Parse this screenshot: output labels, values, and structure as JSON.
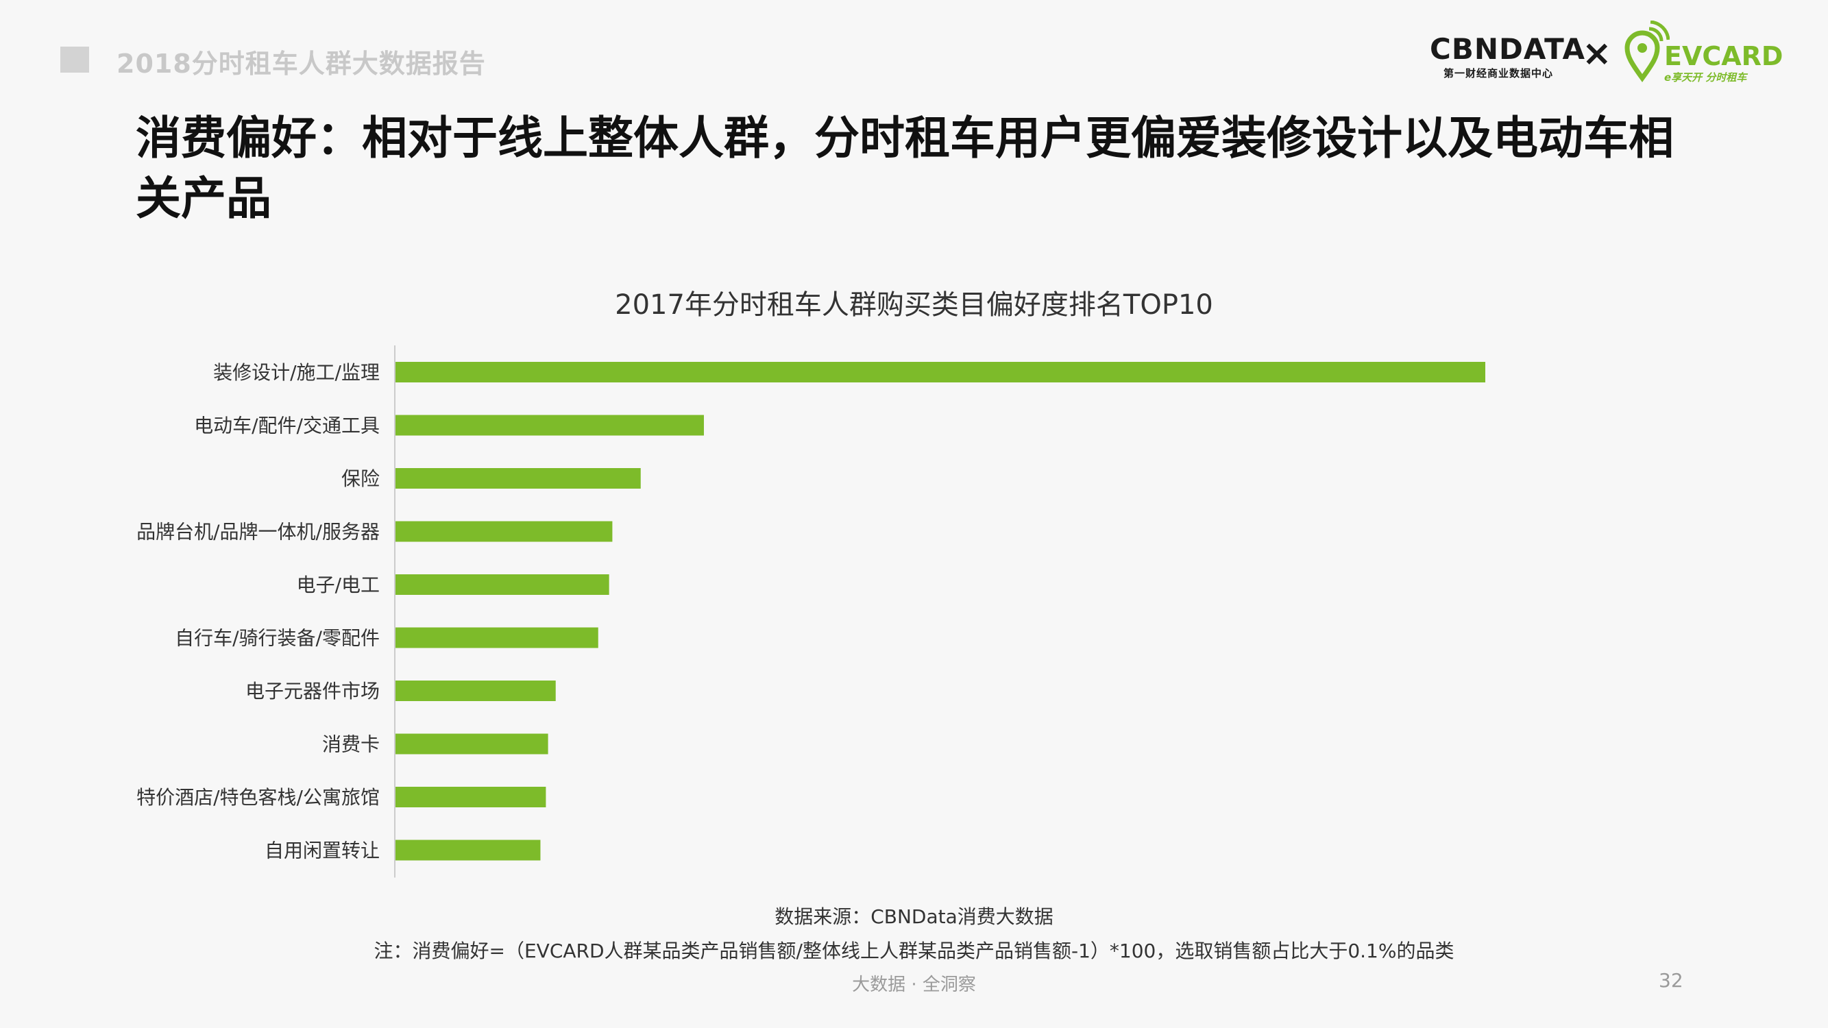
{
  "header": {
    "report_title": "2018分时租车人群大数据报告",
    "logo_cbn": "CBNDATA",
    "logo_cbn_sub": "第一财经商业数据中心",
    "logo_x": "×",
    "logo_ev": "EVCARD",
    "logo_ev_sub": "e享天开 分时租车"
  },
  "headline": "消费偏好：相对于线上整体人群，分时租车用户更偏爱装修设计以及电动车相关产品",
  "chart_data": {
    "type": "bar",
    "orientation": "horizontal",
    "title": "2017年分时租车人群购买类目偏好度排名TOP10",
    "categories": [
      "装修设计/施工/监理",
      "电动车/配件/交通工具",
      "保险",
      "品牌台机/品牌一体机/服务器",
      "电子/电工",
      "自行车/骑行装备/零配件",
      "电子元器件市场",
      "消费卡",
      "特价酒店/特色客栈/公寓旅馆",
      "自用闲置转让"
    ],
    "values": [
      100,
      28.3,
      22.5,
      19.9,
      19.6,
      18.6,
      14.7,
      14.0,
      13.8,
      13.3
    ],
    "xlim": [
      0,
      100
    ],
    "grid": false,
    "legend": "none",
    "bar_color": "#7dbb2a",
    "axis_color": "#cccccc"
  },
  "footer": {
    "source": "数据来源：CBNData消费大数据",
    "note": "注：消费偏好=（EVCARD人群某品类产品销售额/整体线上人群某品类产品销售额-1）*100，选取销售额占比大于0.1%的品类",
    "tagline": "大数据 · 全洞察",
    "page": "32"
  }
}
